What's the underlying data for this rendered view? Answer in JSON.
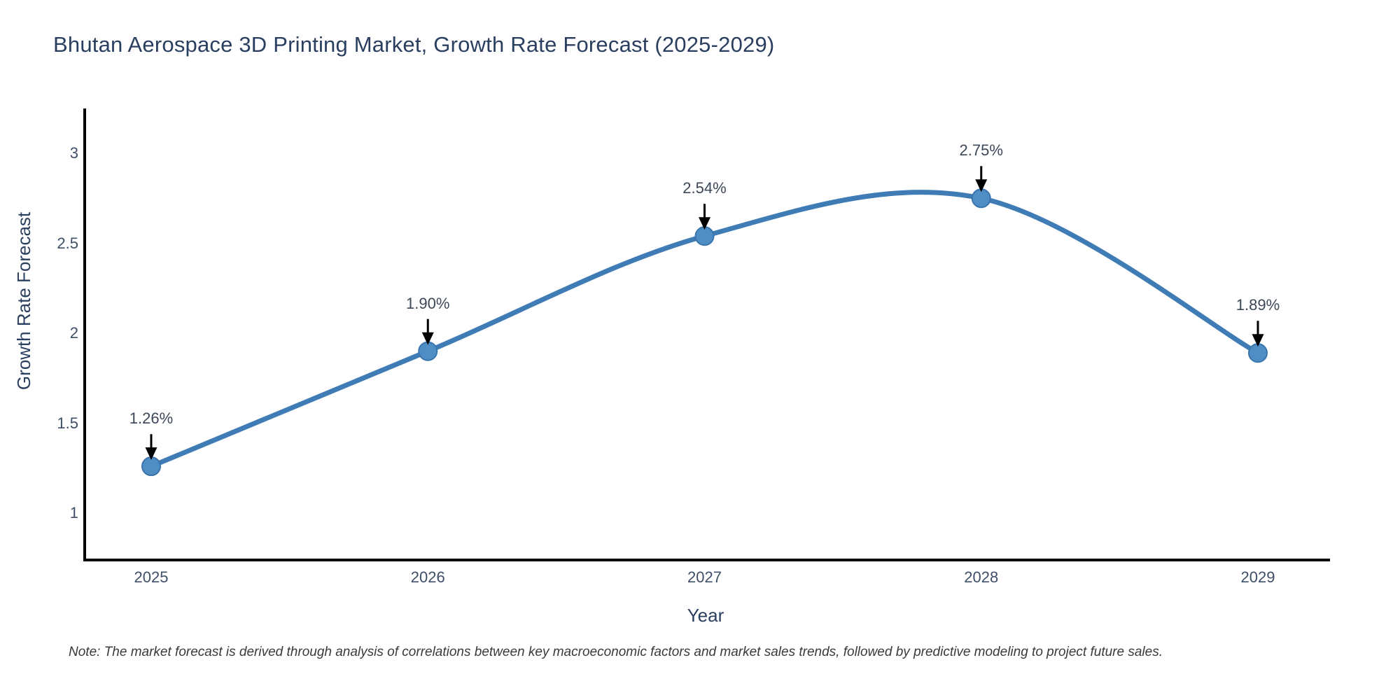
{
  "chart_data": {
    "type": "line",
    "title": "Bhutan Aerospace 3D Printing Market, Growth Rate Forecast (2025-2029)",
    "xlabel": "Year",
    "ylabel": "Growth Rate Forecast",
    "x": [
      2025,
      2026,
      2027,
      2028,
      2029
    ],
    "values": [
      1.26,
      1.9,
      2.54,
      2.75,
      1.89
    ],
    "point_labels": [
      "1.26%",
      "1.90%",
      "2.54%",
      "2.75%",
      "1.89%"
    ],
    "yticks": [
      1,
      1.5,
      2,
      2.5,
      3
    ],
    "ytick_labels": [
      "1",
      "1.5",
      "2",
      "2.5",
      "3"
    ],
    "xtick_labels": [
      "2025",
      "2026",
      "2027",
      "2028",
      "2029"
    ],
    "ylim": [
      0.74,
      3.25
    ],
    "grid": false,
    "legend": false,
    "line_shape": "spline",
    "colors": {
      "line": "#3f7cb5",
      "marker_fill": "#4e8ec5",
      "marker_stroke": "#3a75ad",
      "axis": "#000000",
      "annotation_arrow": "#000000",
      "title_text": "#2a3f5f",
      "tick_text": "#3f4f68"
    }
  },
  "note": "Note: The market forecast is derived through analysis of correlations between key macroeconomic factors and market sales trends, followed by predictive modeling to project future sales."
}
